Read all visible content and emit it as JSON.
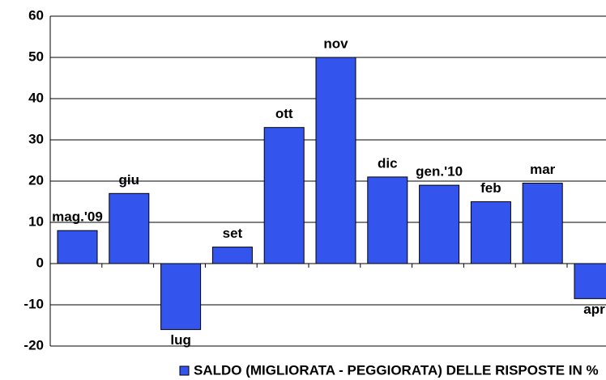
{
  "chart_data": {
    "type": "bar",
    "categories": [
      "mag.'09",
      "giu",
      "lug",
      "set",
      "ott",
      "nov",
      "dic",
      "gen.'10",
      "feb",
      "mar",
      "apr"
    ],
    "series": [
      {
        "name": "SALDO (MIGLIORATA - PEGGIORATA) DELLE RISPOSTE IN %",
        "color": "#3355ee",
        "values": [
          8,
          17,
          -16,
          4,
          33,
          50,
          21,
          19,
          15,
          19.5,
          -8.5
        ]
      }
    ],
    "ylim": [
      -20,
      60
    ],
    "yticks": [
      -20,
      -10,
      0,
      10,
      20,
      30,
      40,
      50,
      60
    ],
    "grid": true,
    "legend": "bottom"
  }
}
